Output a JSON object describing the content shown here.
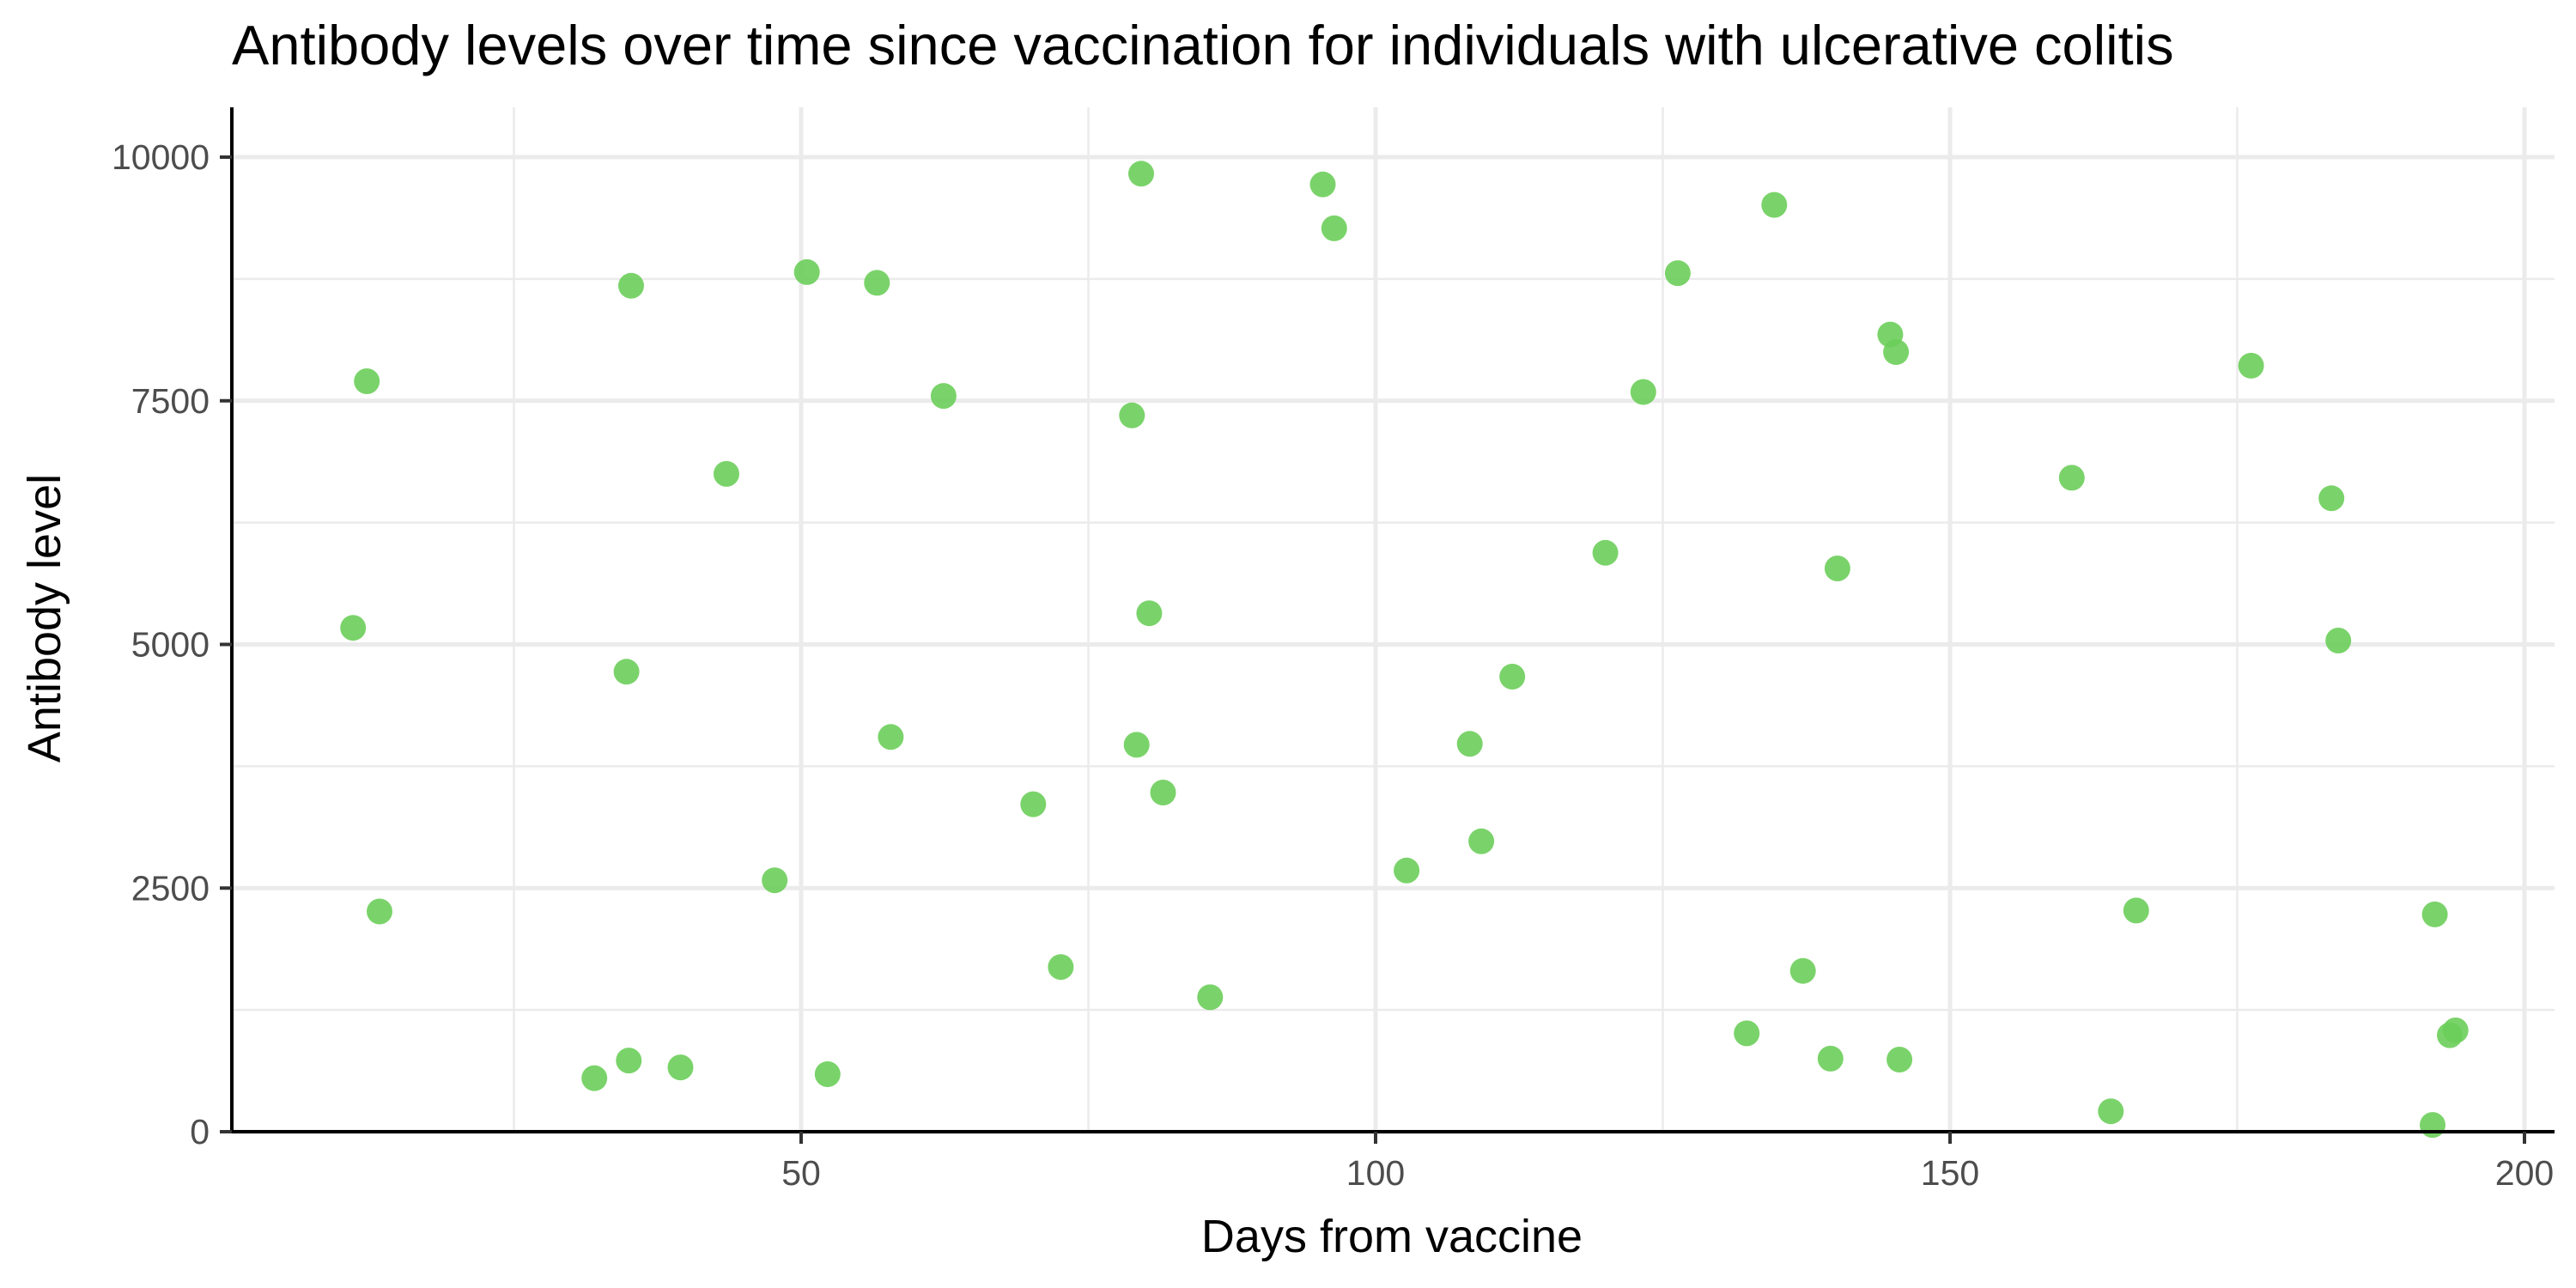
{
  "chart_data": {
    "type": "scatter",
    "title": "Antibody levels over time since vaccination for individuals with ulcerative colitis",
    "xlabel": "Days from vaccine",
    "ylabel": "Antibody level",
    "xlim": [
      5,
      203
    ],
    "ylim": [
      0,
      10500
    ],
    "x_ticks": [
      50,
      100,
      150,
      200
    ],
    "x_tick_labels": [
      "50",
      "100",
      "150",
      "200"
    ],
    "x_minor_ticks": [
      25,
      75,
      125,
      175
    ],
    "y_ticks": [
      0,
      2500,
      5000,
      7500,
      10000
    ],
    "y_tick_labels": [
      "0",
      "2500",
      "5000",
      "7500",
      "10000"
    ],
    "y_minor_ticks": [
      1250,
      3750,
      6250,
      8750
    ],
    "grid": true,
    "point_color": "#6cce5a",
    "series": [
      {
        "points": [
          [
            11.0,
            5170
          ],
          [
            12.2,
            7700
          ],
          [
            13.3,
            2260
          ],
          [
            32.0,
            550
          ],
          [
            35.0,
            730
          ],
          [
            34.8,
            4720
          ],
          [
            35.2,
            8680
          ],
          [
            39.5,
            660
          ],
          [
            43.5,
            6750
          ],
          [
            47.7,
            2580
          ],
          [
            50.5,
            8820
          ],
          [
            52.3,
            590
          ],
          [
            56.6,
            8710
          ],
          [
            57.8,
            4050
          ],
          [
            62.4,
            7550
          ],
          [
            70.2,
            3360
          ],
          [
            72.6,
            1690
          ],
          [
            78.8,
            7350
          ],
          [
            79.2,
            3970
          ],
          [
            79.6,
            9830
          ],
          [
            80.3,
            5320
          ],
          [
            81.5,
            3480
          ],
          [
            85.6,
            1380
          ],
          [
            95.4,
            9720
          ],
          [
            96.4,
            9270
          ],
          [
            102.7,
            2680
          ],
          [
            108.2,
            3980
          ],
          [
            109.2,
            2980
          ],
          [
            111.9,
            4670
          ],
          [
            120.0,
            5940
          ],
          [
            123.3,
            7590
          ],
          [
            126.3,
            8810
          ],
          [
            132.3,
            1010
          ],
          [
            134.7,
            9510
          ],
          [
            137.2,
            1650
          ],
          [
            139.6,
            750
          ],
          [
            140.2,
            5780
          ],
          [
            144.8,
            8180
          ],
          [
            145.3,
            8000
          ],
          [
            145.6,
            740
          ],
          [
            160.6,
            6710
          ],
          [
            164.0,
            210
          ],
          [
            166.2,
            2270
          ],
          [
            176.2,
            7860
          ],
          [
            183.2,
            6500
          ],
          [
            183.8,
            5040
          ],
          [
            192.2,
            2230
          ],
          [
            192.0,
            70
          ],
          [
            193.5,
            990
          ],
          [
            194.0,
            1040
          ]
        ]
      }
    ]
  }
}
